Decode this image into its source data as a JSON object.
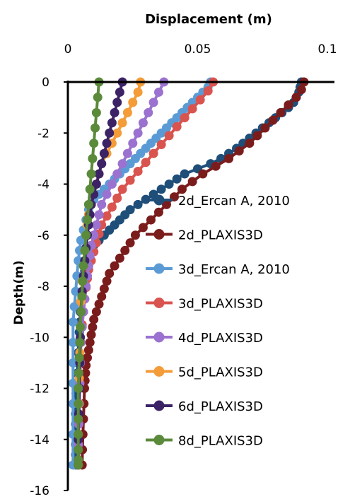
{
  "chart_data": {
    "type": "line",
    "title": "",
    "xlabel": "Displacement (m)",
    "ylabel": "Depth(m)",
    "xlim": [
      0,
      0.1
    ],
    "ylim": [
      -16,
      0
    ],
    "x_axis_position": "top",
    "grid": false,
    "legend_position": "right-middle",
    "x_tick_labels": [
      "0",
      "0.05",
      "0.1"
    ],
    "x_tick_values": [
      0,
      0.05,
      0.1
    ],
    "y_tick_labels": [
      "0",
      "-2",
      "-4",
      "-6",
      "-8",
      "-10",
      "-12",
      "-14",
      "-16"
    ],
    "y_tick_values": [
      0,
      -2,
      -4,
      -6,
      -8,
      -10,
      -12,
      -14,
      -16
    ],
    "series": [
      {
        "name": "2d_Ercan A, 2010",
        "color": "#1f4e79",
        "x": [
          0.09,
          0.0895,
          0.089,
          0.088,
          0.087,
          0.085,
          0.0825,
          0.08,
          0.0775,
          0.075,
          0.0725,
          0.07,
          0.0675,
          0.065,
          0.062,
          0.059,
          0.055,
          0.05,
          0.045,
          0.042,
          0.039,
          0.036,
          0.033,
          0.03,
          0.027,
          0.024,
          0.022,
          0.02,
          0.018,
          0.016,
          0.014,
          0.012,
          0.01,
          0.009,
          0.008,
          0.007,
          0.0065,
          0.006,
          0.0055,
          0.005,
          0.0048,
          0.0046,
          0.0044,
          0.0042,
          0.004,
          0.0038,
          0.0036,
          0.0034,
          0.0032,
          0.003,
          0.003,
          0.003,
          0.003,
          0.003,
          0.003,
          0.003
        ],
        "y": [
          0,
          -0.2,
          -0.4,
          -0.6,
          -0.8,
          -1.0,
          -1.2,
          -1.4,
          -1.6,
          -1.8,
          -2.0,
          -2.2,
          -2.4,
          -2.6,
          -2.8,
          -3.0,
          -3.2,
          -3.4,
          -3.6,
          -3.8,
          -4.0,
          -4.2,
          -4.4,
          -4.6,
          -4.8,
          -5.0,
          -5.2,
          -5.4,
          -5.6,
          -5.8,
          -6.0,
          -6.2,
          -6.4,
          -6.6,
          -6.8,
          -7.0,
          -7.4,
          -7.8,
          -8.2,
          -8.6,
          -9.0,
          -9.4,
          -9.8,
          -10.2,
          -10.6,
          -11.0,
          -11.4,
          -11.8,
          -12.2,
          -12.6,
          -13.0,
          -13.4,
          -13.8,
          -14.2,
          -14.6,
          -15.0
        ]
      },
      {
        "name": "2d_PLAXIS3D",
        "color": "#7b1c1c",
        "x": [
          0.091,
          0.09,
          0.088,
          0.085,
          0.082,
          0.079,
          0.076,
          0.073,
          0.07,
          0.066,
          0.062,
          0.057,
          0.052,
          0.048,
          0.044,
          0.041,
          0.038,
          0.035,
          0.032,
          0.029,
          0.026,
          0.024,
          0.022,
          0.02,
          0.018,
          0.016,
          0.015,
          0.014,
          0.013,
          0.012,
          0.011,
          0.01,
          0.0095,
          0.009,
          0.0085,
          0.008,
          0.0075,
          0.007,
          0.0068,
          0.0066,
          0.0064,
          0.0062,
          0.006,
          0.0058,
          0.0056,
          0.0055
        ],
        "y": [
          0,
          -0.3,
          -0.6,
          -0.9,
          -1.2,
          -1.5,
          -1.8,
          -2.1,
          -2.4,
          -2.7,
          -3.0,
          -3.3,
          -3.6,
          -3.9,
          -4.2,
          -4.5,
          -4.8,
          -5.1,
          -5.4,
          -5.7,
          -6.0,
          -6.3,
          -6.6,
          -6.9,
          -7.2,
          -7.5,
          -7.8,
          -8.1,
          -8.4,
          -8.7,
          -9.0,
          -9.3,
          -9.6,
          -9.9,
          -10.2,
          -10.5,
          -10.8,
          -11.1,
          -11.4,
          -11.7,
          -12.0,
          -12.6,
          -13.2,
          -13.8,
          -14.4,
          -15.0
        ]
      },
      {
        "name": "3d_Ercan A, 2010",
        "color": "#5b9bd5",
        "x": [
          0.055,
          0.054,
          0.052,
          0.05,
          0.048,
          0.046,
          0.044,
          0.042,
          0.04,
          0.038,
          0.036,
          0.034,
          0.032,
          0.03,
          0.028,
          0.026,
          0.024,
          0.022,
          0.02,
          0.018,
          0.016,
          0.014,
          0.012,
          0.01,
          0.009,
          0.008,
          0.007,
          0.006,
          0.005,
          0.0045,
          0.004,
          0.0035,
          0.003,
          0.0025,
          0.002,
          0.002,
          0.002,
          0.002,
          0.002,
          0.002,
          0.002
        ],
        "y": [
          0,
          -0.2,
          -0.4,
          -0.6,
          -0.8,
          -1.0,
          -1.2,
          -1.4,
          -1.6,
          -1.8,
          -2.0,
          -2.2,
          -2.4,
          -2.6,
          -2.8,
          -3.0,
          -3.2,
          -3.4,
          -3.6,
          -3.8,
          -4.0,
          -4.2,
          -4.4,
          -4.6,
          -4.8,
          -5.0,
          -5.4,
          -5.8,
          -6.2,
          -6.6,
          -7.0,
          -7.6,
          -8.2,
          -8.8,
          -9.4,
          -10.2,
          -11.0,
          -11.8,
          -12.6,
          -13.8,
          -15.0
        ]
      },
      {
        "name": "3d_PLAXIS3D",
        "color": "#d9534f",
        "x": [
          0.056,
          0.054,
          0.051,
          0.048,
          0.045,
          0.042,
          0.039,
          0.036,
          0.033,
          0.03,
          0.027,
          0.024,
          0.021,
          0.019,
          0.017,
          0.015,
          0.013,
          0.012,
          0.011,
          0.01,
          0.009,
          0.008,
          0.0075,
          0.007,
          0.0065,
          0.006,
          0.0055,
          0.005,
          0.0048,
          0.0046,
          0.0044,
          0.0042,
          0.004,
          0.004
        ],
        "y": [
          0,
          -0.35,
          -0.7,
          -1.05,
          -1.4,
          -1.75,
          -2.1,
          -2.45,
          -2.8,
          -3.15,
          -3.5,
          -3.85,
          -4.2,
          -4.55,
          -4.9,
          -5.25,
          -5.6,
          -5.95,
          -6.3,
          -6.65,
          -7.0,
          -7.35,
          -7.7,
          -8.05,
          -8.5,
          -9.0,
          -9.5,
          -10.2,
          -11.0,
          -11.8,
          -12.6,
          -13.4,
          -14.2,
          -15.0
        ]
      },
      {
        "name": "4d_PLAXIS3D",
        "color": "#9b72cf",
        "x": [
          0.037,
          0.035,
          0.033,
          0.031,
          0.029,
          0.027,
          0.025,
          0.023,
          0.021,
          0.019,
          0.017,
          0.015,
          0.013,
          0.012,
          0.011,
          0.01,
          0.009,
          0.0085,
          0.008,
          0.0075,
          0.007,
          0.0065,
          0.006,
          0.0055,
          0.005,
          0.0048,
          0.0046,
          0.0044,
          0.0042,
          0.004,
          0.004
        ],
        "y": [
          0,
          -0.4,
          -0.8,
          -1.2,
          -1.6,
          -2.0,
          -2.4,
          -2.8,
          -3.2,
          -3.6,
          -4.0,
          -4.4,
          -4.8,
          -5.2,
          -5.6,
          -6.0,
          -6.4,
          -6.8,
          -7.2,
          -7.6,
          -8.0,
          -8.5,
          -9.0,
          -9.6,
          -10.2,
          -11.0,
          -11.8,
          -12.6,
          -13.4,
          -14.2,
          -15.0
        ]
      },
      {
        "name": "5d_PLAXIS3D",
        "color": "#f39c38",
        "x": [
          0.028,
          0.027,
          0.025,
          0.023,
          0.021,
          0.019,
          0.017,
          0.015,
          0.013,
          0.012,
          0.011,
          0.01,
          0.009,
          0.008,
          0.0075,
          0.007,
          0.0065,
          0.006,
          0.0055,
          0.005,
          0.0048,
          0.0046,
          0.0044,
          0.0042,
          0.004,
          0.004
        ],
        "y": [
          0,
          -0.4,
          -0.8,
          -1.2,
          -1.6,
          -2.0,
          -2.4,
          -2.8,
          -3.2,
          -3.6,
          -4.0,
          -4.4,
          -4.8,
          -5.2,
          -5.6,
          -6.0,
          -6.6,
          -7.2,
          -7.8,
          -8.6,
          -9.6,
          -10.6,
          -11.6,
          -12.6,
          -13.8,
          -15.0
        ]
      },
      {
        "name": "6d_PLAXIS3D",
        "color": "#3b2366",
        "x": [
          0.021,
          0.02,
          0.019,
          0.018,
          0.017,
          0.016,
          0.015,
          0.014,
          0.013,
          0.012,
          0.011,
          0.01,
          0.009,
          0.0085,
          0.008,
          0.0075,
          0.007,
          0.0065,
          0.006,
          0.0055,
          0.005,
          0.0048,
          0.0046,
          0.0044,
          0.0042,
          0.004,
          0.004
        ],
        "y": [
          0,
          -0.4,
          -0.8,
          -1.2,
          -1.6,
          -2.0,
          -2.4,
          -2.8,
          -3.2,
          -3.6,
          -4.0,
          -4.4,
          -4.8,
          -5.2,
          -5.6,
          -6.0,
          -6.5,
          -7.0,
          -7.6,
          -8.2,
          -9.0,
          -10.0,
          -11.0,
          -12.0,
          -13.0,
          -14.0,
          -15.0
        ]
      },
      {
        "name": "8d_PLAXIS3D",
        "color": "#5a8a3a",
        "x": [
          0.012,
          0.0115,
          0.011,
          0.0105,
          0.01,
          0.0095,
          0.009,
          0.0085,
          0.008,
          0.0075,
          0.007,
          0.0065,
          0.006,
          0.0057,
          0.0054,
          0.0051,
          0.0048,
          0.0046,
          0.0044,
          0.0042,
          0.004,
          0.004,
          0.004,
          0.004,
          0.004,
          0.004,
          0.004
        ],
        "y": [
          0,
          -0.6,
          -1.2,
          -1.8,
          -2.4,
          -3.0,
          -3.6,
          -4.2,
          -4.8,
          -5.4,
          -6.0,
          -6.6,
          -7.2,
          -7.8,
          -8.4,
          -9.0,
          -9.6,
          -10.2,
          -10.8,
          -11.4,
          -12.0,
          -12.6,
          -13.2,
          -13.8,
          -14.4,
          -14.8,
          -15.0
        ]
      }
    ]
  }
}
